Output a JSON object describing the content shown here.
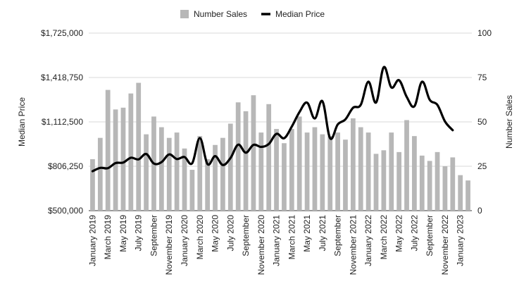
{
  "chart_data": {
    "type": "bar+line",
    "title": "",
    "legend": {
      "placement": "top-center",
      "entries": [
        {
          "name": "Number Sales",
          "mark": "bar",
          "color": "#b7b7b7"
        },
        {
          "name": "Median Price",
          "mark": "line",
          "color": "#000000"
        }
      ]
    },
    "left_axis": {
      "label": "Median Price",
      "ticks": [
        "$500,000",
        "$806,250",
        "$1,112,500",
        "$1,418,750",
        "$1,725,000"
      ],
      "range": [
        500000,
        1725000
      ]
    },
    "right_axis": {
      "label": "Number Sales",
      "ticks": [
        "0",
        "25",
        "50",
        "75",
        "100"
      ],
      "range": [
        0,
        100
      ]
    },
    "grid": true,
    "x_labels": [
      "January 2019",
      "March 2019",
      "May 2019",
      "July 2019",
      "September",
      "November 2019",
      "January 2020",
      "March 2020",
      "May 2020",
      "July 2020",
      "September",
      "November 2020",
      "January 2021",
      "March 2021",
      "May 2021",
      "July 2021",
      "September",
      "November 2021",
      "January 2022",
      "March 2022",
      "May 2022",
      "July 2022",
      "September",
      "November 2022",
      "January 2023"
    ],
    "label_month_index": [
      0,
      2,
      4,
      6,
      8,
      10,
      12,
      14,
      16,
      18,
      20,
      22,
      24,
      26,
      28,
      30,
      32,
      34,
      36,
      38,
      40,
      42,
      44,
      46,
      48
    ],
    "series": [
      {
        "name": "Number Sales",
        "kind": "bar",
        "axis": "right",
        "color": "#b7b7b7",
        "values": [
          29,
          41,
          68,
          57,
          58,
          66,
          72,
          43,
          53,
          47,
          41,
          44,
          35,
          23,
          42,
          29,
          37,
          41,
          49,
          61,
          56,
          65,
          44,
          60,
          46,
          38,
          46,
          53,
          44,
          47,
          43,
          42,
          44,
          40,
          52,
          47,
          44,
          32,
          34,
          44,
          33,
          51,
          42,
          31,
          28,
          33,
          25,
          30,
          20,
          17
        ]
      },
      {
        "name": "Median Price",
        "kind": "line",
        "axis": "left",
        "color": "#000000",
        "values": [
          772000,
          795000,
          793000,
          828000,
          832000,
          865000,
          854000,
          891000,
          825000,
          835000,
          888000,
          856000,
          870000,
          827000,
          1001000,
          821000,
          876000,
          815000,
          863000,
          955000,
          900000,
          954000,
          940000,
          960000,
          1030000,
          1000000,
          1080000,
          1180000,
          1245000,
          1136000,
          1255000,
          1000000,
          1095000,
          1130000,
          1210000,
          1230000,
          1390000,
          1246000,
          1490000,
          1350000,
          1400000,
          1285000,
          1220000,
          1390000,
          1265000,
          1230000,
          1115000,
          1055000
        ]
      }
    ]
  }
}
